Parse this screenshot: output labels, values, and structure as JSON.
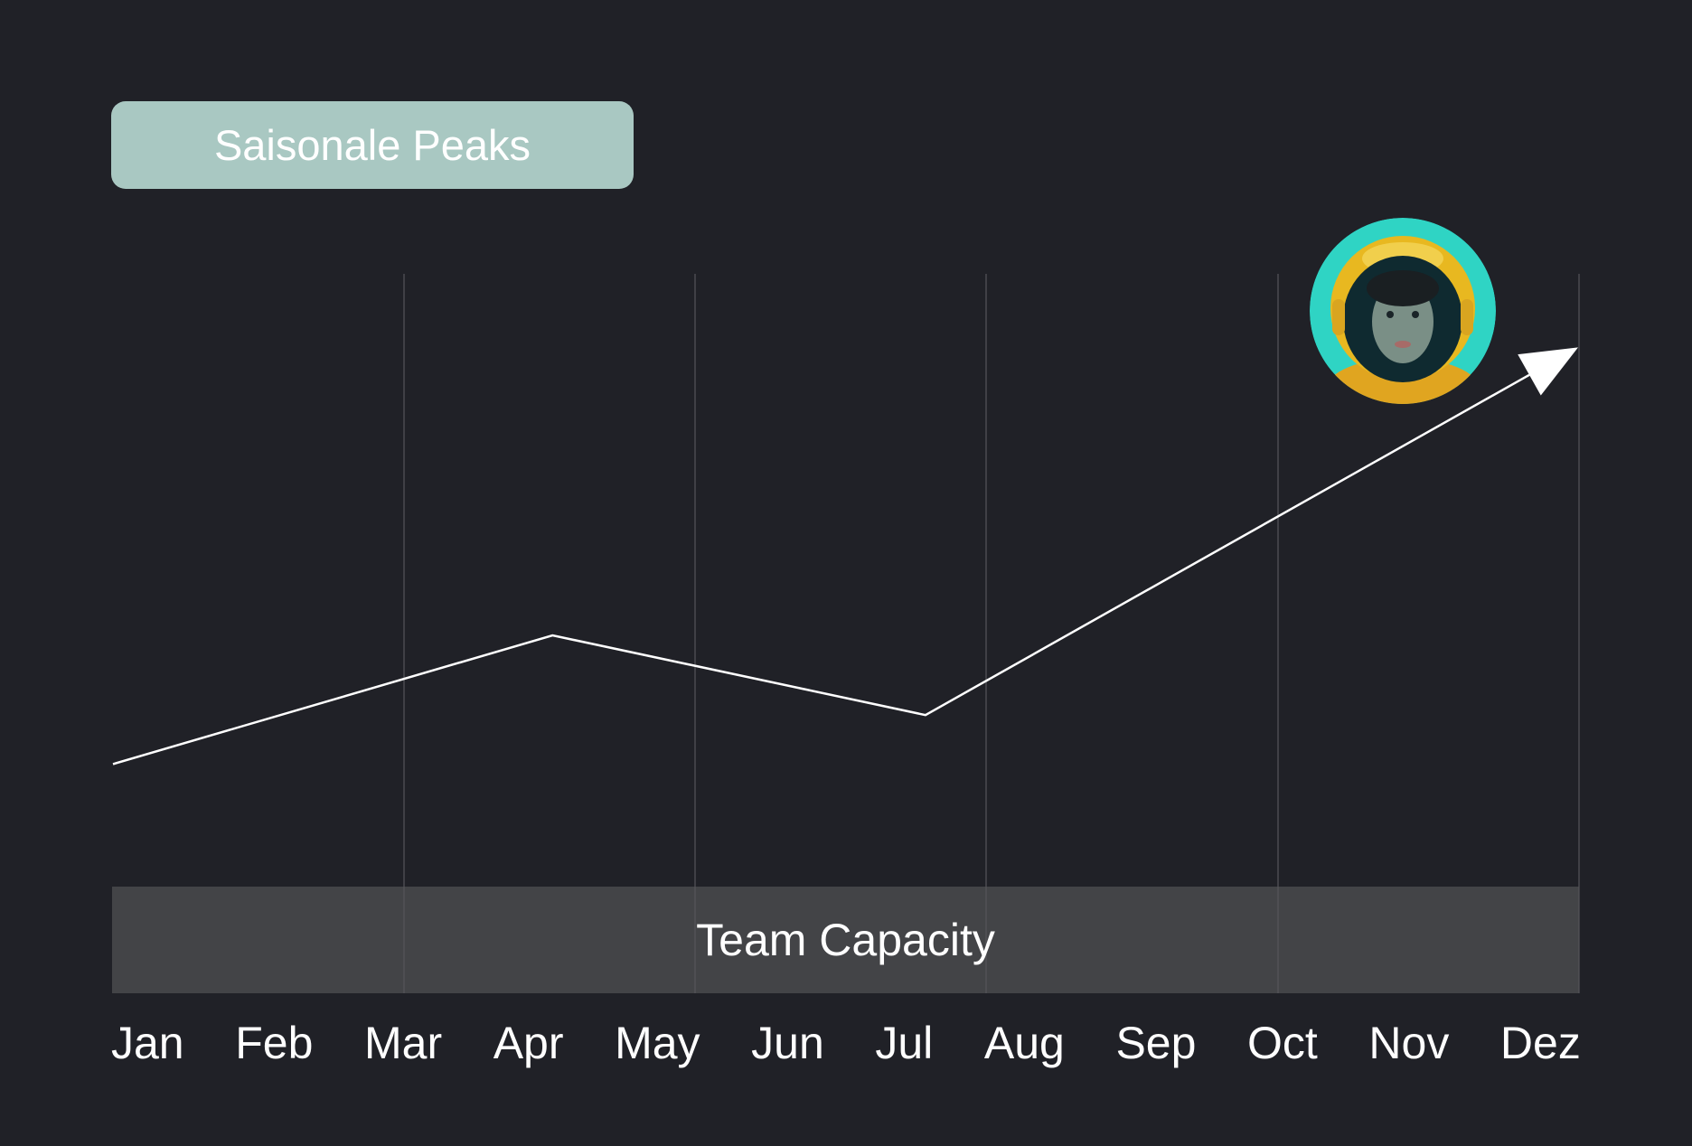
{
  "badge": {
    "label": "Saisonale Peaks"
  },
  "chart_data": {
    "type": "line",
    "title": "",
    "xlabel": "",
    "ylabel": "",
    "categories": [
      "Jan",
      "Feb",
      "Mar",
      "Apr",
      "May",
      "Jun",
      "Jul",
      "Aug",
      "Sep",
      "Oct",
      "Nov",
      "Dez"
    ],
    "series": [
      {
        "x": [
          0,
          3.3,
          6.1,
          11
        ],
        "values": [
          20,
          41,
          28,
          88
        ],
        "end_marker": "arrow"
      }
    ],
    "ylim": [
      0,
      100
    ],
    "grid": "vertical",
    "band": {
      "label": "Team Capacity",
      "color": "#434447"
    },
    "colors": {
      "background": "#202127",
      "line": "#ffffff",
      "grid": "#55565b",
      "badge": "#a9c8c2"
    }
  },
  "avatar": {
    "icon": "astronaut-avatar",
    "ring_color": "#2fd4c4",
    "helmet_color": "#e8b820"
  }
}
